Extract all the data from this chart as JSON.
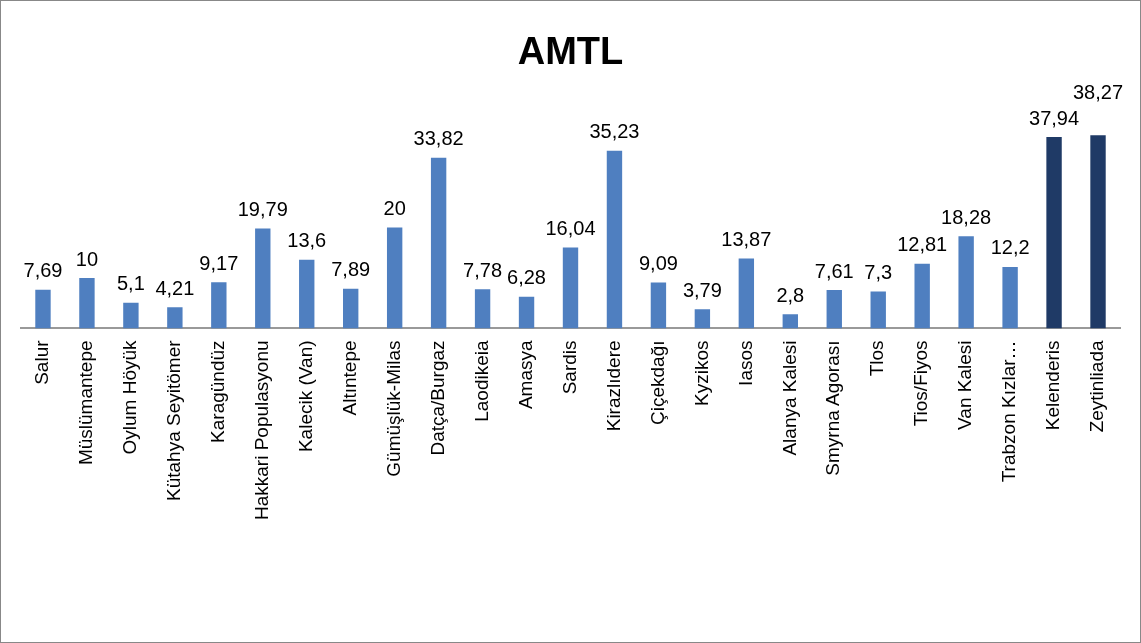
{
  "chart_data": {
    "type": "bar",
    "title": "AMTL",
    "categories": [
      "Salur",
      "Müslümantepe",
      "Oylum Höyük",
      "Kütahya Seyitömer",
      "Karagündüz",
      "Hakkari Populasyonu",
      "Kalecik (Van)",
      "Altıntepe",
      "Gümüşlük-Milas",
      "Datça/Burgaz",
      "Laodikeia",
      "Amasya",
      "Sardis",
      "Kirazlıdere",
      "Çiçekdağı",
      "Kyzikos",
      "Iasos",
      "Alanya Kalesi",
      "Smyrna Agorası",
      "Tlos",
      "Tios/Fiyos",
      "Van Kalesi",
      "Trabzon Kızlar…",
      "Kelenderis",
      "Zeytinliada"
    ],
    "values": [
      7.69,
      10,
      5.1,
      4.21,
      9.17,
      19.79,
      13.6,
      7.89,
      20,
      33.82,
      7.78,
      6.28,
      16.04,
      35.23,
      9.09,
      3.79,
      13.87,
      2.8,
      7.61,
      7.3,
      12.81,
      18.28,
      12.2,
      37.94,
      38.27
    ],
    "value_labels": [
      "7,69",
      "10",
      "5,1",
      "4,21",
      "9,17",
      "19,79",
      "13,6",
      "7,89",
      "20",
      "33,82",
      "7,78",
      "6,28",
      "16,04",
      "35,23",
      "9,09",
      "3,79",
      "13,87",
      "2,8",
      "7,61",
      "7,3",
      "12,81",
      "18,28",
      "12,2",
      "37,94",
      "38,27"
    ],
    "colors": [
      "#4f7fc0",
      "#4f7fc0",
      "#4f7fc0",
      "#4f7fc0",
      "#4f7fc0",
      "#4f7fc0",
      "#4f7fc0",
      "#4f7fc0",
      "#4f7fc0",
      "#4f7fc0",
      "#4f7fc0",
      "#4f7fc0",
      "#4f7fc0",
      "#4f7fc0",
      "#4f7fc0",
      "#4f7fc0",
      "#4f7fc0",
      "#4f7fc0",
      "#4f7fc0",
      "#4f7fc0",
      "#4f7fc0",
      "#4f7fc0",
      "#4f7fc0",
      "#1f3a66",
      "#1f3a66"
    ],
    "legend": false,
    "grid": false
  }
}
